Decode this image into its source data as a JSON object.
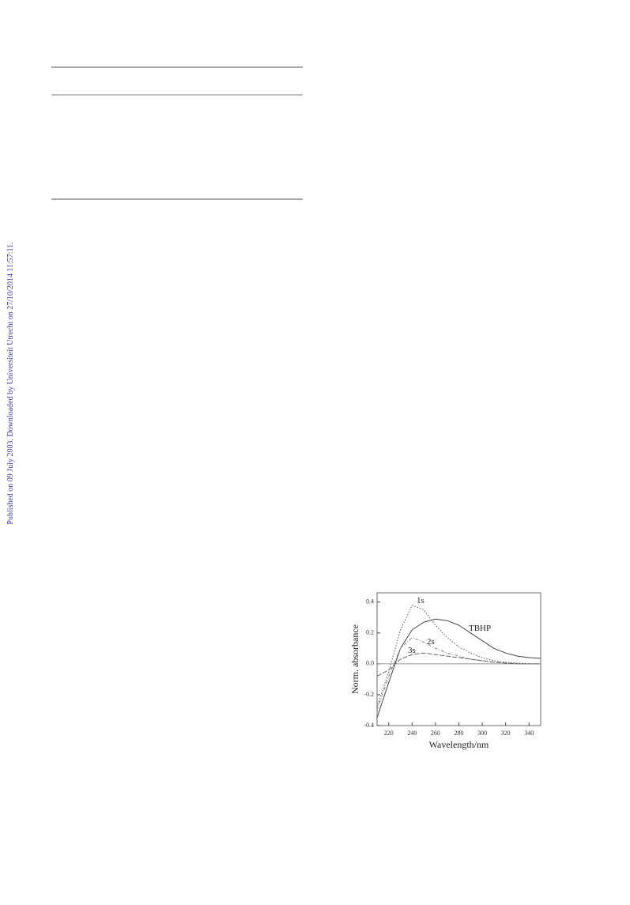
{
  "side_note": "Published on 09 July 2003. Downloaded by Universiteit Utrecht on 27/10/2014 11:57:11.",
  "chart_data": {
    "type": "line",
    "xlabel": "Wavelength/nm",
    "ylabel": "Norm. absorbance",
    "x": [
      210,
      220,
      230,
      240,
      250,
      260,
      270,
      280,
      290,
      300,
      310,
      320,
      330,
      340,
      350
    ],
    "xlim": [
      210,
      350
    ],
    "xticks": [
      220,
      240,
      260,
      280,
      300,
      320,
      340
    ],
    "ylim": [
      -0.4,
      0.46
    ],
    "yticks": [
      0.4,
      0.2,
      {
        "value": 0,
        "label": "0.0"
      },
      -0.2,
      -0.4
    ],
    "series": [
      {
        "name": "1s",
        "color": "#555555",
        "dash": "1.5,2",
        "values": [
          -0.28,
          -0.05,
          0.22,
          0.38,
          0.35,
          0.25,
          0.17,
          0.11,
          0.07,
          0.04,
          0.02,
          0.01,
          0.005,
          0,
          0
        ]
      },
      {
        "name": "TBHP",
        "color": "#444444",
        "dash": "none",
        "values": [
          -0.35,
          -0.12,
          0.1,
          0.22,
          0.27,
          0.29,
          0.28,
          0.25,
          0.2,
          0.15,
          0.1,
          0.07,
          0.05,
          0.04,
          0.035
        ]
      },
      {
        "name": "2s",
        "color": "#888888",
        "dash": "4,2,1,2",
        "values": [
          -0.3,
          -0.08,
          0.1,
          0.17,
          0.14,
          0.1,
          0.07,
          0.05,
          0.03,
          0.02,
          0.01,
          0.005,
          0,
          0,
          0
        ]
      },
      {
        "name": "3s",
        "color": "#666666",
        "dash": "6,2",
        "values": [
          -0.08,
          -0.04,
          0.03,
          0.06,
          0.07,
          0.06,
          0.05,
          0.04,
          0.03,
          0.02,
          0.01,
          0.005,
          0,
          0,
          0
        ]
      }
    ]
  }
}
